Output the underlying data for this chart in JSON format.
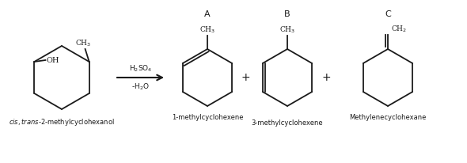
{
  "bg_color": "#ffffff",
  "line_color": "#1a1a1a",
  "text_color": "#1a1a1a",
  "lw": 1.3,
  "label_A": "A",
  "label_B": "B",
  "label_C": "C",
  "name_A": "1-methylcyclohexene",
  "name_B": "3-methylcyclohexene",
  "name_C": "Methylenecyclohexane",
  "reagent_top": "H$_2$SO$_4$",
  "reagent_bot": "-H$_2$O",
  "figw": 5.9,
  "figh": 2.06,
  "dpi": 100
}
